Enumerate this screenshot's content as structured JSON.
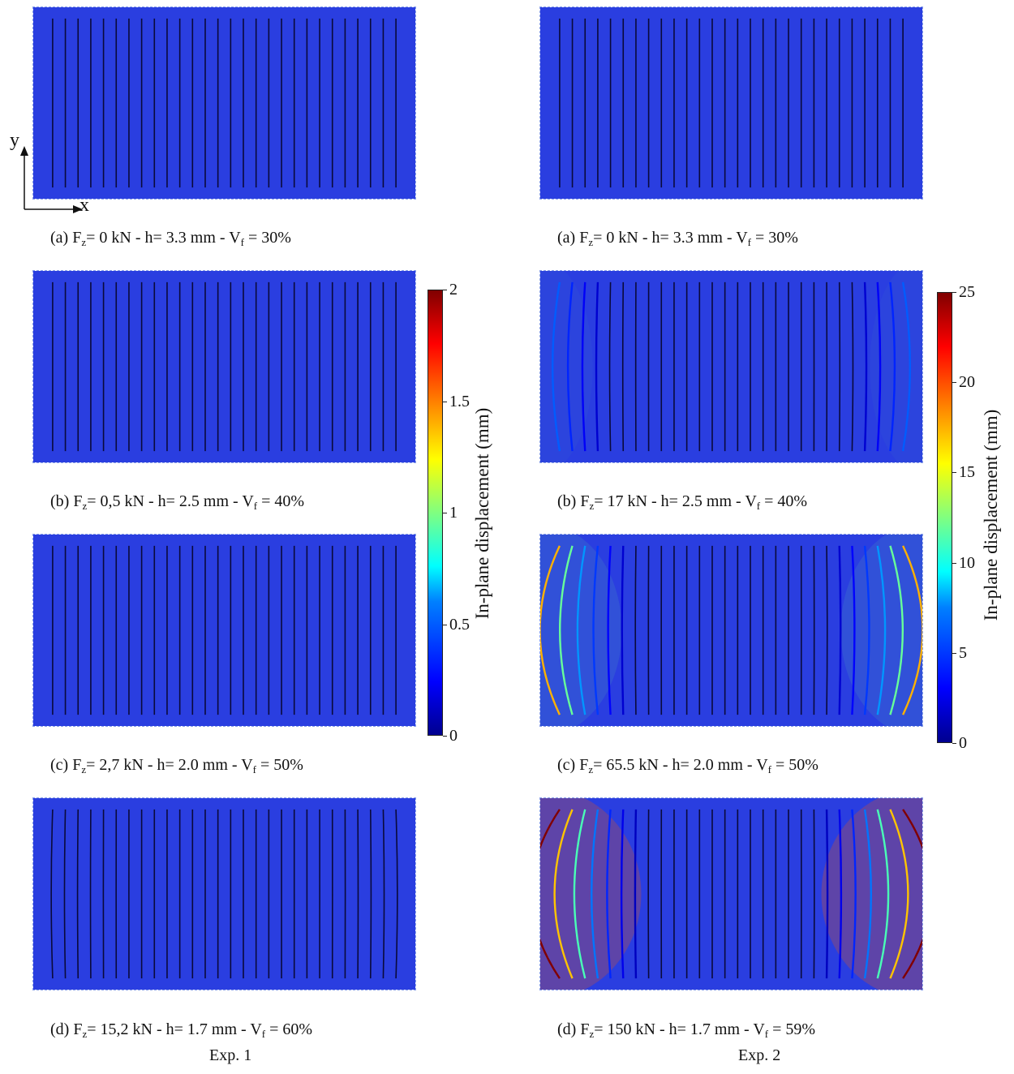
{
  "columns": [
    {
      "label": "Exp. 1",
      "colorbar": {
        "label": "In-plane displacement (mm)",
        "min": 0,
        "max": 2,
        "ticks": [
          "0",
          "0.5",
          "1",
          "1.5",
          "2"
        ]
      },
      "panels": [
        {
          "letter": "(a)",
          "force": "0 kN",
          "h": "3.3 mm",
          "vf": "30%",
          "deform": 0
        },
        {
          "letter": "(b)",
          "force": "0,5 kN",
          "h": "2.5 mm",
          "vf": "40%",
          "deform": 0
        },
        {
          "letter": "(c)",
          "force": "2,7 kN",
          "h": "2.0 mm",
          "vf": "50%",
          "deform": 0
        },
        {
          "letter": "(d)",
          "force": "15,2 kN",
          "h": "1.7 mm",
          "vf": "60%",
          "deform": 0.05
        }
      ]
    },
    {
      "label": "Exp. 2",
      "colorbar": {
        "label": "In-plane displacement (mm)",
        "min": 0,
        "max": 25,
        "ticks": [
          "0",
          "5",
          "10",
          "15",
          "20",
          "25"
        ]
      },
      "panels": [
        {
          "letter": "(a)",
          "force": "0 kN",
          "h": "3.3 mm",
          "vf": "30%",
          "deform": 0
        },
        {
          "letter": "(b)",
          "force": "17 kN",
          "h": "2.5 mm",
          "vf": "40%",
          "deform": 0.25
        },
        {
          "letter": "(c)",
          "force": "65.5 kN",
          "h": "2.0 mm",
          "vf": "50%",
          "deform": 0.7
        },
        {
          "letter": "(d)",
          "force": "150 kN",
          "h": "1.7 mm",
          "vf": "59%",
          "deform": 1.0
        }
      ]
    }
  ],
  "axes": {
    "x": "x",
    "y": "y"
  },
  "caption_parts": {
    "fz": "F",
    "fz_sub": "z",
    "h_prefix": "h=",
    "vf": "V",
    "vf_sub": "f"
  },
  "colors": {
    "field": "#2a3ee0",
    "fiber": "#0a0a3a"
  }
}
